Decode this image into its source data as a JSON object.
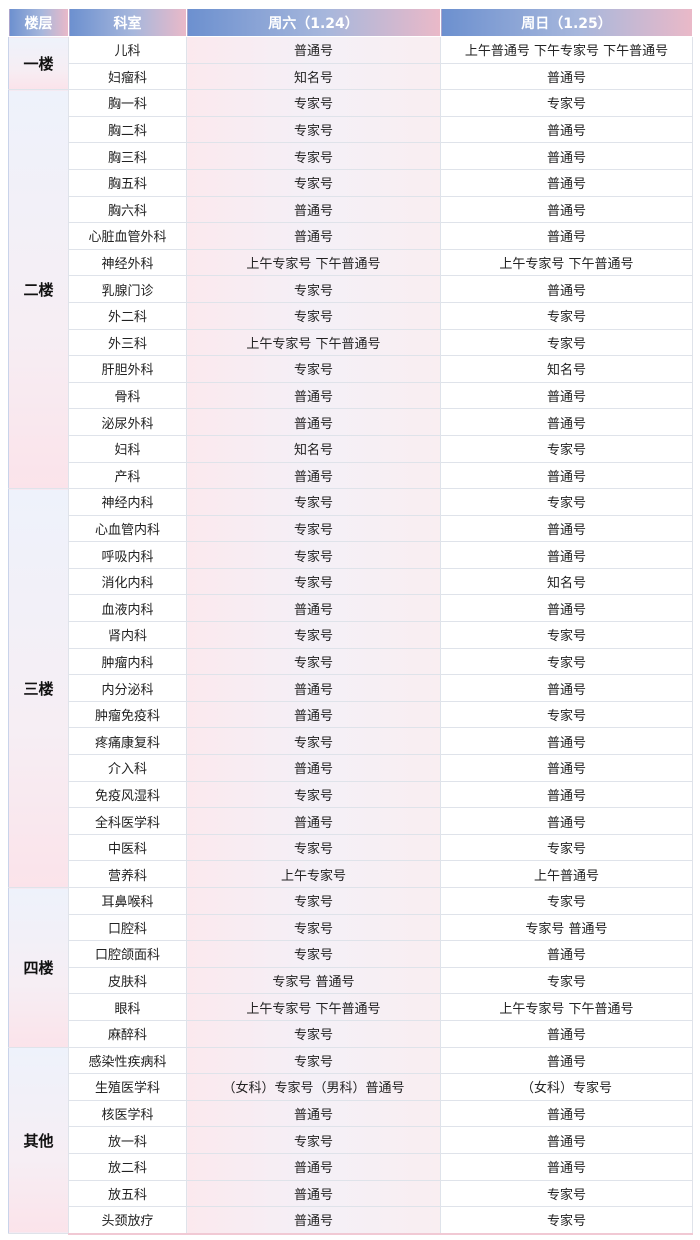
{
  "header": {
    "floor": "楼层",
    "dept": "科室",
    "sat": "周六（1.24）",
    "sun": "周日（1.25）"
  },
  "colors": {
    "header_start": "#6c90cf",
    "header_end": "#eab9c8"
  },
  "floors": [
    {
      "name": "一楼",
      "rows": [
        [
          "儿科",
          "普通号",
          "上午普通号 下午专家号 下午普通号"
        ],
        [
          "妇瘤科",
          "知名号",
          "普通号"
        ]
      ]
    },
    {
      "name": "二楼",
      "rows": [
        [
          "胸一科",
          "专家号",
          "专家号"
        ],
        [
          "胸二科",
          "专家号",
          "普通号"
        ],
        [
          "胸三科",
          "专家号",
          "普通号"
        ],
        [
          "胸五科",
          "专家号",
          "普通号"
        ],
        [
          "胸六科",
          "普通号",
          "普通号"
        ],
        [
          "心脏血管外科",
          "普通号",
          "普通号"
        ],
        [
          "神经外科",
          "上午专家号 下午普通号",
          "上午专家号 下午普通号"
        ],
        [
          "乳腺门诊",
          "专家号",
          "普通号"
        ],
        [
          "外二科",
          "专家号",
          "专家号"
        ],
        [
          "外三科",
          "上午专家号 下午普通号",
          "专家号"
        ],
        [
          "肝胆外科",
          "专家号",
          "知名号"
        ],
        [
          "骨科",
          "普通号",
          "普通号"
        ],
        [
          "泌尿外科",
          "普通号",
          "普通号"
        ],
        [
          "妇科",
          "知名号",
          "专家号"
        ],
        [
          "产科",
          "普通号",
          "普通号"
        ]
      ]
    },
    {
      "name": "三楼",
      "rows": [
        [
          "神经内科",
          "专家号",
          "专家号"
        ],
        [
          "心血管内科",
          "专家号",
          "普通号"
        ],
        [
          "呼吸内科",
          "专家号",
          "普通号"
        ],
        [
          "消化内科",
          "专家号",
          "知名号"
        ],
        [
          "血液内科",
          "普通号",
          "普通号"
        ],
        [
          "肾内科",
          "专家号",
          "专家号"
        ],
        [
          "肿瘤内科",
          "专家号",
          "专家号"
        ],
        [
          "内分泌科",
          "普通号",
          "普通号"
        ],
        [
          "肿瘤免疫科",
          "普通号",
          "专家号"
        ],
        [
          "疼痛康复科",
          "专家号",
          "普通号"
        ],
        [
          "介入科",
          "普通号",
          "普通号"
        ],
        [
          "免疫风湿科",
          "专家号",
          "普通号"
        ],
        [
          "全科医学科",
          "普通号",
          "普通号"
        ],
        [
          "中医科",
          "专家号",
          "专家号"
        ],
        [
          "营养科",
          "上午专家号",
          "上午普通号"
        ]
      ]
    },
    {
      "name": "四楼",
      "rows": [
        [
          "耳鼻喉科",
          "专家号",
          "专家号"
        ],
        [
          "口腔科",
          "专家号",
          "专家号 普通号"
        ],
        [
          "口腔颌面科",
          "专家号",
          "普通号"
        ],
        [
          "皮肤科",
          "专家号 普通号",
          "专家号"
        ],
        [
          "眼科",
          "上午专家号 下午普通号",
          "上午专家号 下午普通号"
        ],
        [
          "麻醉科",
          "专家号",
          "普通号"
        ]
      ]
    },
    {
      "name": "其他",
      "rows": [
        [
          "感染性疾病科",
          "专家号",
          "普通号"
        ],
        [
          "生殖医学科",
          "（女科）专家号（男科）普通号",
          "（女科）专家号"
        ],
        [
          "核医学科",
          "普通号",
          "普通号"
        ],
        [
          "放一科",
          "专家号",
          "普通号"
        ],
        [
          "放二科",
          "普通号",
          "普通号"
        ],
        [
          "放五科",
          "普通号",
          "专家号"
        ],
        [
          "头颈放疗",
          "普通号",
          "专家号"
        ]
      ]
    }
  ]
}
